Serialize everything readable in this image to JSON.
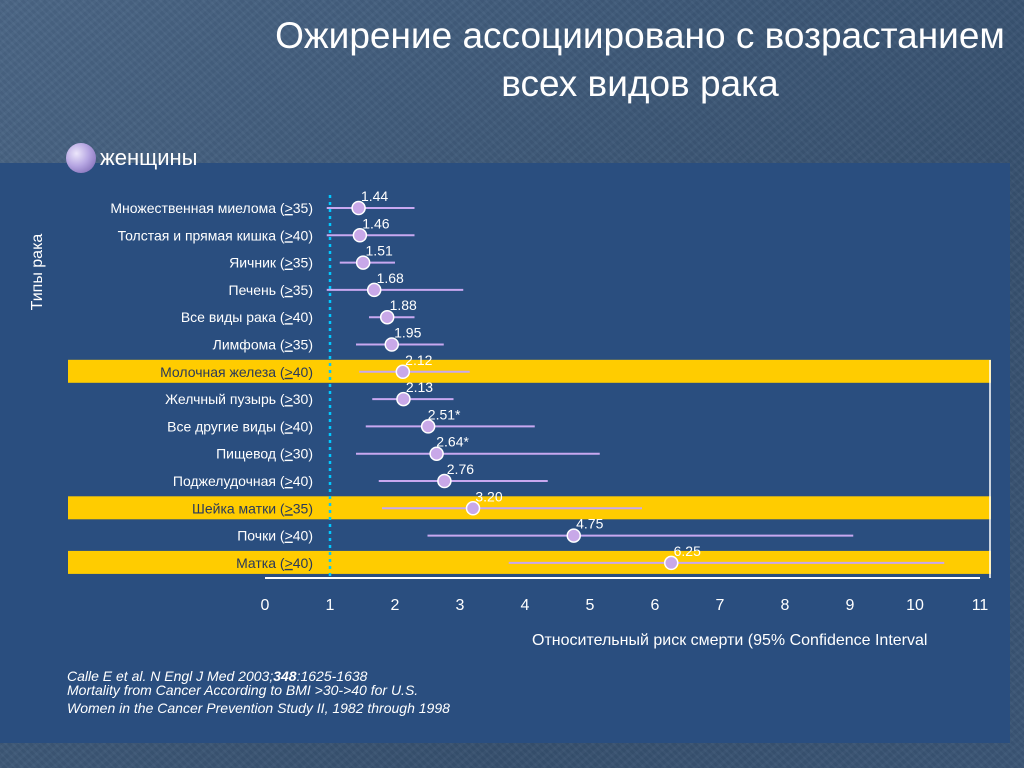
{
  "slide": {
    "title_line1": "Ожирение ассоциировано с возрастанием",
    "title_line2": "всех видов рака",
    "subtitle": "женщины"
  },
  "citation": {
    "line1_a": "Calle E et al. N Engl J Med 2003;",
    "line1_b": "348",
    "line1_c": ":1625-1638",
    "line2": "Mortality from Cancer According to BMI >30->40 for U.S.",
    "line3": "Women in the Cancer Prevention Study II, 1982 through 1998"
  },
  "colors": {
    "panel": "#2a4e7f",
    "highlight": "#ffcc00",
    "ci_line": "#c8a8f0",
    "point_fill": "#c8a8e8",
    "reference_line": "#00c8ff"
  },
  "chart_data": {
    "type": "forest",
    "ylabel": "Типы рака",
    "xlabel": "Относительный риск смерти (95% Confidence Interval",
    "xlim": [
      0,
      11
    ],
    "xticks": [
      "0",
      "1",
      "2",
      "3",
      "4",
      "5",
      "6",
      "7",
      "8",
      "9",
      "10",
      "11"
    ],
    "reference_x": 1,
    "rows": [
      {
        "name": "Множественная миелома",
        "threshold": "35",
        "value": 1.44,
        "value_label": "1.44",
        "ci": [
          0.95,
          2.3
        ],
        "highlight": false
      },
      {
        "name": "Толстая и прямая кишка",
        "threshold": "40",
        "value": 1.46,
        "value_label": "1.46",
        "ci": [
          0.95,
          2.3
        ],
        "highlight": false
      },
      {
        "name": "Яичник",
        "threshold": "35",
        "value": 1.51,
        "value_label": "1.51",
        "ci": [
          1.15,
          2.0
        ],
        "highlight": false
      },
      {
        "name": "Печень",
        "threshold": "35",
        "value": 1.68,
        "value_label": "1.68",
        "ci": [
          0.95,
          3.05
        ],
        "highlight": false
      },
      {
        "name": "Все виды рака",
        "threshold": "40",
        "value": 1.88,
        "value_label": "1.88",
        "ci": [
          1.6,
          2.3
        ],
        "highlight": false
      },
      {
        "name": "Лимфома",
        "threshold": "35",
        "value": 1.95,
        "value_label": "1.95",
        "ci": [
          1.4,
          2.75
        ],
        "highlight": false
      },
      {
        "name": "Молочная железа",
        "threshold": "40",
        "value": 2.12,
        "value_label": "2.12",
        "ci": [
          1.45,
          3.15
        ],
        "highlight": true
      },
      {
        "name": "Желчный пузырь",
        "threshold": "30",
        "value": 2.13,
        "value_label": "2.13",
        "ci": [
          1.65,
          2.9
        ],
        "highlight": false
      },
      {
        "name": "Все другие виды",
        "threshold": "40",
        "value": 2.51,
        "value_label": "2.51*",
        "ci": [
          1.55,
          4.15
        ],
        "highlight": false
      },
      {
        "name": "Пищевод",
        "threshold": "30",
        "value": 2.64,
        "value_label": "2.64*",
        "ci": [
          1.4,
          5.15
        ],
        "highlight": false
      },
      {
        "name": "Поджелудочная",
        "threshold": "40",
        "value": 2.76,
        "value_label": "2.76",
        "ci": [
          1.75,
          4.35
        ],
        "highlight": false
      },
      {
        "name": "Шейка матки",
        "threshold": "35",
        "value": 3.2,
        "value_label": "3.20",
        "ci": [
          1.8,
          5.8
        ],
        "highlight": true
      },
      {
        "name": "Почки",
        "threshold": "40",
        "value": 4.75,
        "value_label": "4.75",
        "ci": [
          2.5,
          9.05
        ],
        "highlight": false
      },
      {
        "name": "Матка",
        "threshold": "40",
        "value": 6.25,
        "value_label": "6.25",
        "ci": [
          3.75,
          10.45
        ],
        "highlight": true
      }
    ]
  }
}
